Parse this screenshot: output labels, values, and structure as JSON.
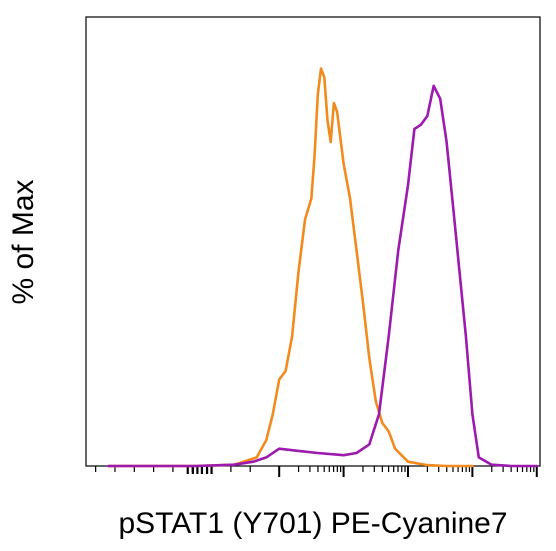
{
  "chart_data": {
    "type": "line",
    "title": "",
    "xlabel": "pSTAT1 (Y701) PE-Cyanine7",
    "ylabel": "% of Max",
    "x_scale": "biexponential",
    "x_tick_labels": [],
    "y_tick_labels": [],
    "ylim": [
      0,
      100
    ],
    "grid": false,
    "legend": "none",
    "series": [
      {
        "color": "#F28A1E",
        "x": [
          -1.65,
          -0.3,
          0.3,
          0.65,
          0.8,
          0.9,
          1.0,
          1.1,
          1.2,
          1.3,
          1.4,
          1.5,
          1.55,
          1.6,
          1.65,
          1.7,
          1.75,
          1.8,
          1.85,
          1.9,
          2.0,
          2.1,
          2.2,
          2.3,
          2.4,
          2.5,
          2.6,
          2.7,
          2.8,
          3.0,
          3.3,
          3.6,
          4.0
        ],
        "values": [
          0,
          0,
          0.3,
          2,
          6,
          12,
          20,
          22,
          30,
          45,
          57,
          62,
          72,
          86,
          92,
          90,
          80,
          75,
          84,
          82,
          70,
          62,
          50,
          38,
          25,
          15,
          10,
          8,
          4,
          1,
          0.2,
          0,
          0
        ]
      },
      {
        "color": "#9C1AAE",
        "x": [
          -1.65,
          -0.3,
          0.3,
          0.6,
          0.8,
          1.0,
          1.3,
          1.6,
          2.0,
          2.2,
          2.4,
          2.55,
          2.7,
          2.85,
          3.0,
          3.1,
          3.2,
          3.3,
          3.4,
          3.5,
          3.6,
          3.7,
          3.8,
          3.9,
          4.0,
          4.1,
          4.3,
          4.6,
          5.0
        ],
        "values": [
          0,
          0,
          0.3,
          1,
          2,
          4,
          3.5,
          3,
          2.5,
          3,
          5,
          12,
          30,
          50,
          65,
          78,
          79,
          81,
          88,
          85,
          75,
          60,
          45,
          30,
          12,
          2,
          0.3,
          0,
          0
        ]
      }
    ]
  }
}
